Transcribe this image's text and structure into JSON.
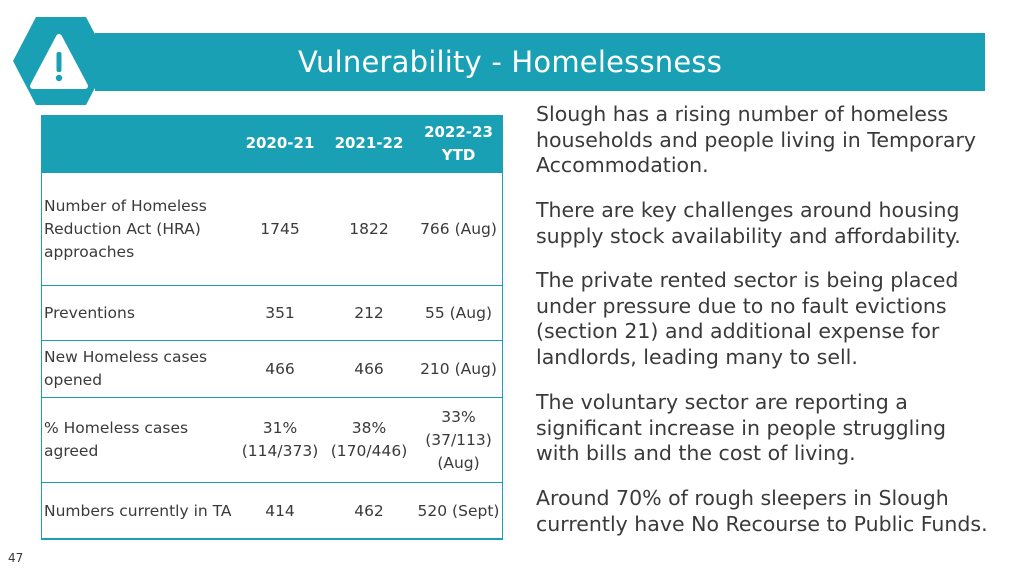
{
  "slide": {
    "title": "Vulnerability - Homelessness",
    "icon": "warning-icon",
    "page_number": "47",
    "colors": {
      "accent": "#1aa0b4",
      "text": "#3a3a3a",
      "background": "#ffffff"
    }
  },
  "table": {
    "headers": [
      "",
      "2020-21",
      "2021-22",
      "2022-23 YTD"
    ],
    "rows": [
      {
        "label": "Number of Homeless Reduction Act (HRA) approaches",
        "values": [
          "1745",
          "1822",
          "766 (Aug)"
        ]
      },
      {
        "label": "Preventions",
        "values": [
          "351",
          "212",
          "55 (Aug)"
        ]
      },
      {
        "label": "New Homeless cases opened",
        "values": [
          "466",
          "466",
          "210 (Aug)"
        ]
      },
      {
        "label": "% Homeless cases agreed",
        "values": [
          "31% (114/373)",
          "38% (170/446)",
          "33% (37/113) (Aug)"
        ]
      },
      {
        "label": "Numbers currently in TA",
        "values": [
          "414",
          "462",
          "520 (Sept)"
        ]
      }
    ]
  },
  "text": {
    "paragraphs": [
      "Slough has a rising number of homeless households and people living in Temporary Accommodation.",
      "There are key challenges around housing supply stock availability and affordability.",
      "The private rented sector is being placed under pressure due to no fault evictions (section 21) and additional expense for landlords, leading many to sell.",
      "The voluntary sector are reporting a significant increase in people struggling with bills and the cost of living.",
      "Around 70% of rough sleepers in Slough currently have No Recourse to Public Funds."
    ]
  }
}
